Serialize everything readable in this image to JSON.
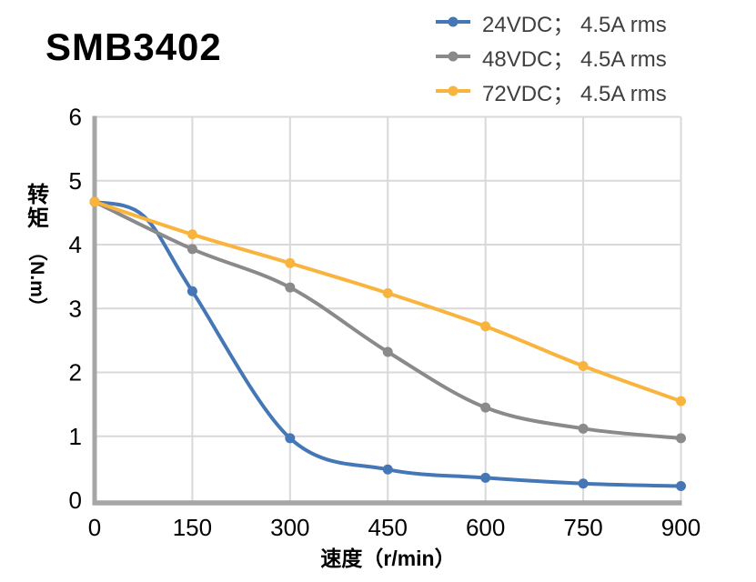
{
  "title": "SMB3402",
  "axes": {
    "x_title": "速度（r/min）",
    "y_title": "转矩（N.m）",
    "y_title_cjk": "转矩",
    "y_title_unit": "（N.m）"
  },
  "chart_data": {
    "type": "line",
    "title": "SMB3402",
    "xlabel": "速度（r/min）",
    "ylabel": "转矩（N.m）",
    "x": [
      0,
      150,
      300,
      450,
      600,
      750,
      900
    ],
    "x_tick_labels": [
      "0",
      "150",
      "300",
      "450",
      "600",
      "750",
      "900"
    ],
    "y_ticks": [
      0,
      1,
      2,
      3,
      4,
      5,
      6
    ],
    "y_tick_labels": [
      "0",
      "1",
      "2",
      "3",
      "4",
      "5",
      "6"
    ],
    "xlim": [
      0,
      900
    ],
    "ylim": [
      0,
      6
    ],
    "grid": true,
    "legend_position": "top-right",
    "marker": "circle",
    "series": [
      {
        "id": "24vdc",
        "name": "24VDC； 4.5A rms",
        "color": "#4577b6",
        "values": [
          4.67,
          3.27,
          0.97,
          0.48,
          0.35,
          0.26,
          0.22
        ],
        "smoothing_hint_points": [
          [
            0,
            4.67
          ],
          [
            75,
            4.45
          ],
          [
            150,
            3.27
          ],
          [
            300,
            0.97
          ],
          [
            450,
            0.48
          ],
          [
            600,
            0.35
          ],
          [
            750,
            0.26
          ],
          [
            900,
            0.22
          ]
        ]
      },
      {
        "id": "48vdc",
        "name": "48VDC； 4.5A rms",
        "color": "#8a8a8a",
        "values": [
          4.67,
          3.93,
          3.33,
          2.32,
          1.45,
          1.12,
          0.97
        ]
      },
      {
        "id": "72vdc",
        "name": "72VDC； 4.5A rms",
        "color": "#f9b43d",
        "values": [
          4.67,
          4.16,
          3.71,
          3.24,
          2.72,
          2.1,
          1.55
        ]
      }
    ],
    "style": {
      "grid_color": "#d9d9d9",
      "axis_color": "#a6a6a6",
      "tick_color": "#000000",
      "legend_text_color": "#3f3f3f",
      "line_width": 4,
      "marker_radius": 5.5,
      "tick_font_size": 26
    }
  }
}
